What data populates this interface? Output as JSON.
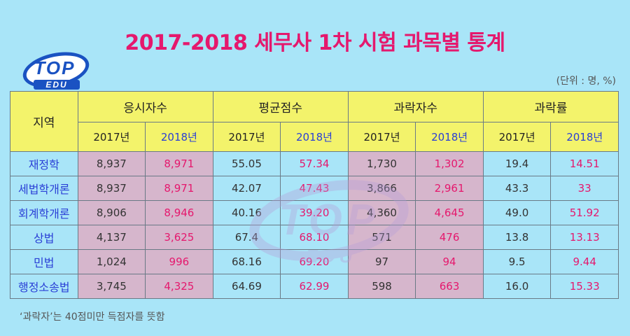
{
  "title": "2017-2018 세무사 1차 시험 과목별 통계",
  "unit": "(단위 : 명, %)",
  "logo": {
    "top": "TOP",
    "edu": "EDU"
  },
  "note": "‘과락자’는 40점미만 득점자를 뜻함",
  "colors": {
    "background": "#a9e5f8",
    "title": "#e5186d",
    "header": "#f3f36b",
    "highlight2018": "#e5186d",
    "year2018": "#2a3fd6"
  },
  "chart_data": {
    "type": "table",
    "region_header": "지역",
    "groups": [
      "응시자수",
      "평균점수",
      "과락자수",
      "과락률"
    ],
    "years": [
      "2017년",
      "2018년"
    ],
    "rows": [
      {
        "name": "재정학",
        "values": [
          "8,937",
          "8,971",
          "55.05",
          "57.34",
          "1,730",
          "1,302",
          "19.4",
          "14.51"
        ]
      },
      {
        "name": "세법학개론",
        "values": [
          "8,937",
          "8,971",
          "42.07",
          "47.43",
          "3,866",
          "2,961",
          "43.3",
          "33"
        ]
      },
      {
        "name": "회계학개론",
        "values": [
          "8,906",
          "8,946",
          "40.16",
          "39.20",
          "4,360",
          "4,645",
          "49.0",
          "51.92"
        ]
      },
      {
        "name": "상법",
        "values": [
          "4,137",
          "3,625",
          "67.4",
          "68.10",
          "571",
          "476",
          "13.8",
          "13.13"
        ]
      },
      {
        "name": "민법",
        "values": [
          "1,024",
          "996",
          "68.16",
          "69.20",
          "97",
          "94",
          "9.5",
          "9.44"
        ]
      },
      {
        "name": "행정소송법",
        "values": [
          "3,745",
          "4,325",
          "64.69",
          "62.99",
          "598",
          "663",
          "16.0",
          "15.33"
        ]
      }
    ]
  }
}
